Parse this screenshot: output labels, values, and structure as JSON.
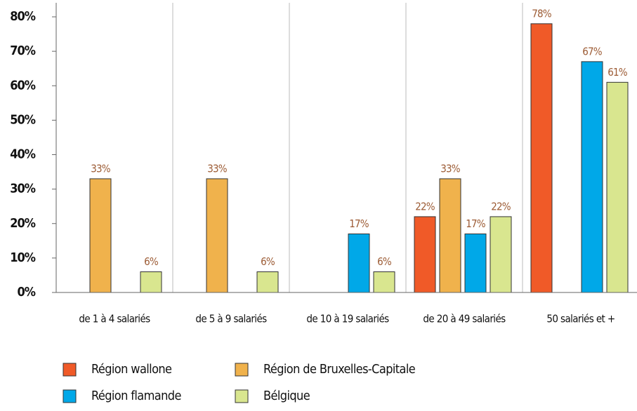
{
  "chart_data": {
    "type": "bar",
    "categories": [
      "de 1 à 4 salariés",
      "de 5 à 9 salariés",
      "de 10 à 19 salariés",
      "de 20 à 49 salariés",
      "50 salariés et +"
    ],
    "series": [
      {
        "name": "Région wallone",
        "color": "#f05a28",
        "values": [
          null,
          null,
          null,
          22,
          78
        ],
        "value_labels": [
          null,
          null,
          null,
          "22%",
          "78%"
        ]
      },
      {
        "name": "Région de Bruxelles-Capitale",
        "color": "#f0b24c",
        "values": [
          33,
          33,
          null,
          33,
          null
        ],
        "value_labels": [
          "33%",
          "33%",
          null,
          "33%",
          null
        ]
      },
      {
        "name": "Région flamande",
        "color": "#00a8e8",
        "values": [
          null,
          null,
          17,
          17,
          67
        ],
        "value_labels": [
          null,
          null,
          "17%",
          "17%",
          "67%"
        ]
      },
      {
        "name": "Bélgique",
        "color": "#d9e68f",
        "values": [
          6,
          6,
          6,
          22,
          61
        ],
        "value_labels": [
          "6%",
          "6%",
          "6%",
          "22%",
          "61%"
        ]
      }
    ],
    "ylim": [
      0,
      80
    ],
    "yticks": [
      {
        "value": 0,
        "label": "0%"
      },
      {
        "value": 10,
        "label": "10%"
      },
      {
        "value": 20,
        "label": "20%"
      },
      {
        "value": 30,
        "label": "30%"
      },
      {
        "value": 40,
        "label": "40%"
      },
      {
        "value": 50,
        "label": "50%"
      },
      {
        "value": 60,
        "label": "60%"
      },
      {
        "value": 70,
        "label": "70%"
      },
      {
        "value": 80,
        "label": "80%"
      }
    ],
    "legend": "bottom-left"
  }
}
